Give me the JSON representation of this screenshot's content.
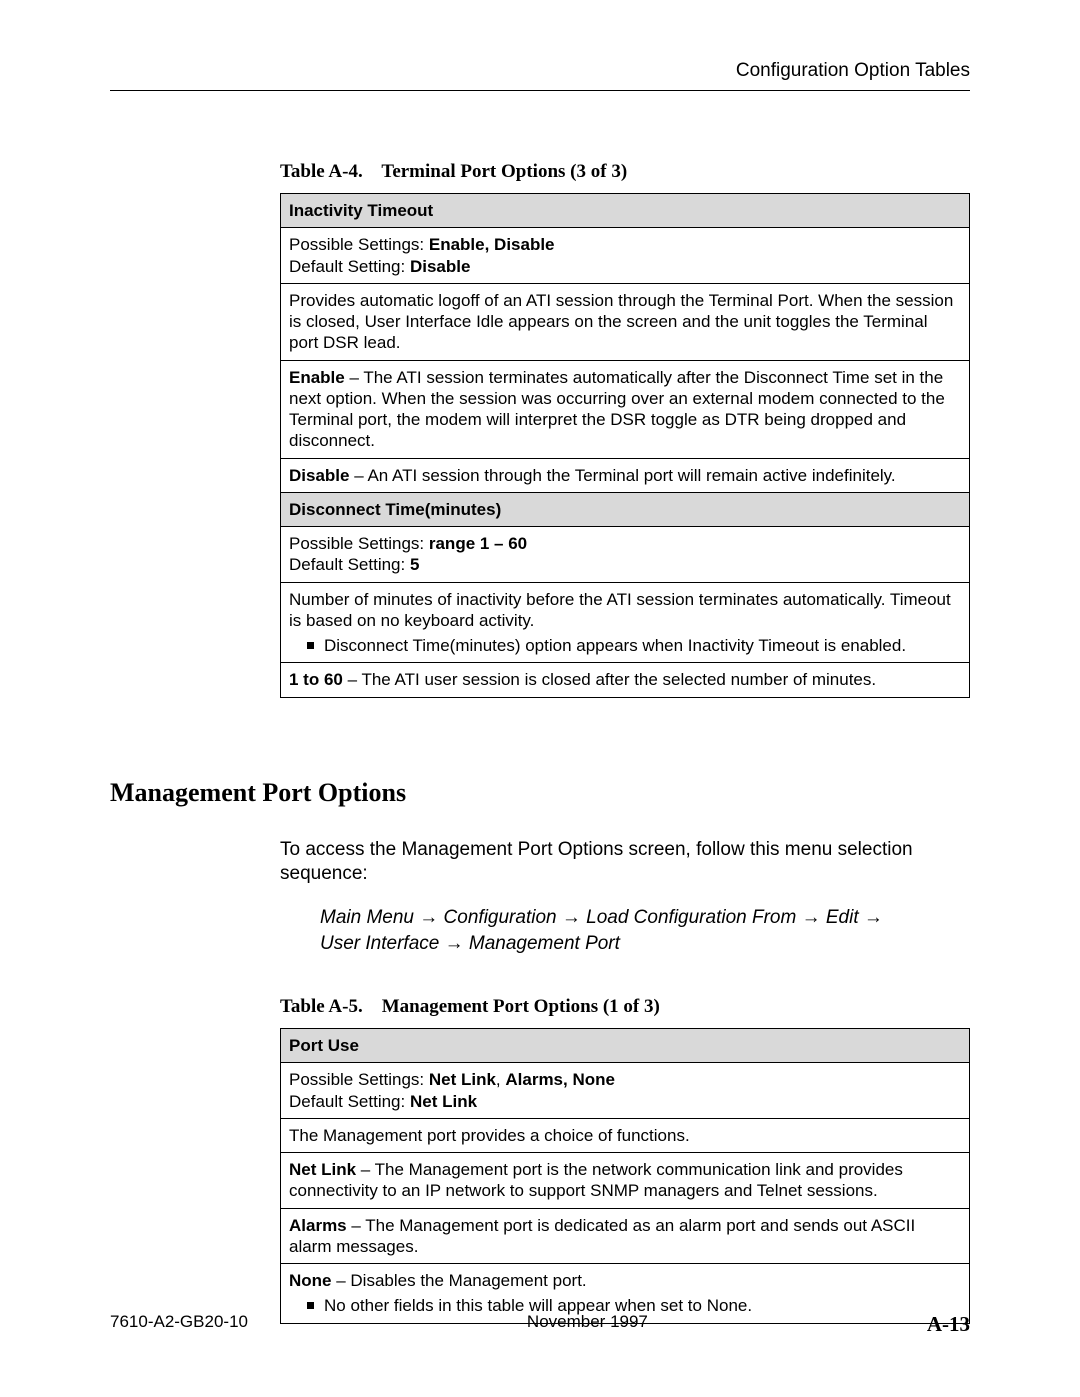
{
  "header": {
    "title": "Configuration Option Tables"
  },
  "table1": {
    "caption_prefix": "Table A-4.",
    "caption_title": "Terminal Port Options (3 of 3)",
    "rows": {
      "r1": "Inactivity Timeout",
      "r2_l1a": "Possible Settings: ",
      "r2_l1b": "Enable, Disable",
      "r2_l2a": "Default Setting: ",
      "r2_l2b": "Disable",
      "r3": "Provides automatic logoff of an ATI session through the Terminal Port. When the session is closed, User Interface Idle appears on the screen and the unit toggles the Terminal port DSR lead.",
      "r4a": "Enable",
      "r4b": " – The ATI session terminates automatically after the Disconnect Time set in the next option. When the session was occurring over an external modem connected to the Terminal port, the modem will interpret the DSR toggle as DTR being dropped and disconnect.",
      "r5a": "Disable",
      "r5b": " – An ATI session through the Terminal port will remain active indefinitely.",
      "r6": "Disconnect Time(minutes)",
      "r7_l1a": "Possible Settings: ",
      "r7_l1b": "range 1 – 60",
      "r7_l2a": "Default Setting: ",
      "r7_l2b": "5",
      "r8_p1": "Number of minutes of inactivity before the ATI session terminates automatically. Timeout is based on no keyboard activity.",
      "r8_bul": "Disconnect Time(minutes) option appears when Inactivity Timeout is enabled.",
      "r9a": "1 to 60",
      "r9b": " – The ATI user session is closed after the selected number of minutes."
    }
  },
  "section": {
    "title": "Management Port Options",
    "intro": "To access the Management Port Options screen, follow this menu selection sequence:",
    "path_l1_a": "Main Menu ",
    "path_l1_b": " Configuration ",
    "path_l1_c": " Load Configuration From ",
    "path_l1_d": " Edit ",
    "path_l2_a": "User Interface ",
    "path_l2_b": " Management Port",
    "arrow": "→"
  },
  "table2": {
    "caption_prefix": "Table A-5.",
    "caption_title": "Management Port Options (1 of 3)",
    "rows": {
      "r1": "Port Use",
      "r2_l1a": "Possible Settings: ",
      "r2_l1b": "Net Link",
      "r2_l1c": ", ",
      "r2_l1d": "Alarms, None",
      "r2_l2a": "Default Setting: ",
      "r2_l2b": "Net Link",
      "r3": "The Management port provides a choice of functions.",
      "r4a": "Net Link",
      "r4b": " – The Management port is the network communication link and provides connectivity to an IP network to support SNMP managers and Telnet sessions.",
      "r5a": "Alarms",
      "r5b": " – The Management port is dedicated as an alarm port and sends out ASCII alarm messages.",
      "r6a": "None",
      "r6b": " – Disables the Management port.",
      "r6_bul": "No other fields in this table will appear when set to None."
    }
  },
  "footer": {
    "left": "7610-A2-GB20-10",
    "center": "November 1997",
    "right": "A-13"
  }
}
